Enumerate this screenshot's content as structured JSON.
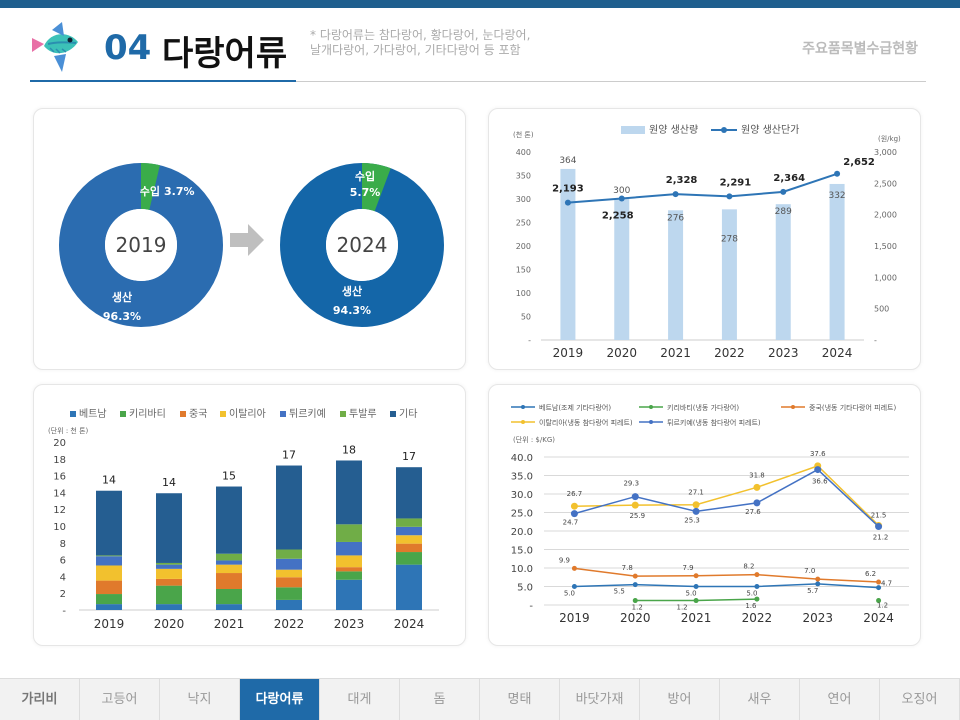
{
  "header": {
    "number": "04",
    "title": "다랑어류",
    "note": "* 다랑어류는 참다랑어, 황다랑어, 눈다랑어,\n 날개다랑어, 가다랑어, 기타다랑어 등 포함",
    "subtitle": "주요품목별수급현황"
  },
  "nav": {
    "active_index": 3,
    "tabs": [
      "가리비",
      "고등어",
      "낙지",
      "다랑어류",
      "대게",
      "돔",
      "명태",
      "바닷가재",
      "방어",
      "새우",
      "연어",
      "오징어"
    ]
  },
  "colors": {
    "donut_blue": "#2b6cb0",
    "donut_blue_2024": "#1466a8",
    "donut_green": "#3aac4a",
    "bar_light": "#bdd7ee",
    "line_blue": "#2e75b6"
  },
  "chart_data": [
    {
      "type": "pie",
      "id": "donut-2019",
      "center_label": "2019",
      "slices": [
        {
          "name": "수입",
          "value": 3.7,
          "label": "3.7%"
        },
        {
          "name": "생산",
          "value": 96.3,
          "label": "96.3%"
        }
      ]
    },
    {
      "type": "pie",
      "id": "donut-2024",
      "center_label": "2024",
      "slices": [
        {
          "name": "수입",
          "value": 5.7,
          "label": "5.7%"
        },
        {
          "name": "생산",
          "value": 94.3,
          "label": "94.3%"
        }
      ]
    },
    {
      "type": "bar",
      "id": "production",
      "categories": [
        "2019",
        "2020",
        "2021",
        "2022",
        "2023",
        "2024"
      ],
      "series": [
        {
          "name": "원양 생산량",
          "kind": "bar",
          "axis": "left",
          "values": [
            364,
            300,
            276,
            278,
            289,
            332
          ]
        },
        {
          "name": "원양 생산단가",
          "kind": "line",
          "axis": "right",
          "values": [
            2193,
            2258,
            2328,
            2291,
            2364,
            2652
          ]
        }
      ],
      "value_labels": {
        "bar": [
          "364",
          "300",
          "276",
          "278",
          "289",
          "332"
        ],
        "line": [
          "2,193",
          "2,258",
          "2,328",
          "2,291",
          "2,364",
          "2,652"
        ]
      },
      "left_unit": "(천 톤)",
      "right_unit": "(원/kg)",
      "left_ticks": [
        "-",
        "50",
        "100",
        "150",
        "200",
        "250",
        "300",
        "350",
        "400"
      ],
      "right_ticks": [
        "-",
        "500",
        "1,000",
        "1,500",
        "2,000",
        "2,500",
        "3,000"
      ],
      "ylim_left": [
        0,
        400
      ],
      "ylim_right": [
        0,
        3000
      ]
    },
    {
      "type": "bar",
      "stacked": true,
      "id": "imports-by-country",
      "categories": [
        "2019",
        "2020",
        "2021",
        "2022",
        "2023",
        "2024"
      ],
      "series": [
        {
          "name": "베트남",
          "color": "#2e75b6",
          "values": [
            0.7,
            0.7,
            0.7,
            1.2,
            3.6,
            5.4
          ]
        },
        {
          "name": "키리바티",
          "color": "#4aa54a",
          "values": [
            1.2,
            2.2,
            1.8,
            1.5,
            1.0,
            1.5
          ]
        },
        {
          "name": "중국",
          "color": "#e07a2c",
          "values": [
            1.6,
            0.8,
            1.9,
            1.2,
            0.5,
            1.0
          ]
        },
        {
          "name": "이탈리아",
          "color": "#f2c12e",
          "values": [
            1.8,
            1.2,
            1.0,
            0.9,
            1.4,
            1.0
          ]
        },
        {
          "name": "튀르키예",
          "color": "#4472c4",
          "values": [
            1.1,
            0.5,
            0.5,
            1.3,
            1.6,
            1.0
          ]
        },
        {
          "name": "투발루",
          "color": "#70ad47",
          "values": [
            0.1,
            0.2,
            0.8,
            1.1,
            2.1,
            1.0
          ]
        },
        {
          "name": "기타",
          "color": "#255e91",
          "values": [
            7.7,
            8.3,
            8.0,
            10.0,
            7.6,
            6.1
          ]
        }
      ],
      "totals": [
        "14",
        "14",
        "15",
        "17",
        "18",
        "17"
      ],
      "unit": "(단위 : 천 톤)",
      "y_ticks": [
        "-",
        "2",
        "4",
        "6",
        "8",
        "10",
        "12",
        "14",
        "16",
        "18",
        "20"
      ],
      "ylim": [
        0,
        20
      ]
    },
    {
      "type": "line",
      "id": "import-prices",
      "categories": [
        "2019",
        "2020",
        "2021",
        "2022",
        "2023",
        "2024"
      ],
      "series": [
        {
          "name": "베트남(조제 기타다랑어)",
          "color": "#2e75b6",
          "values": [
            5.0,
            5.5,
            5.0,
            5.0,
            5.7,
            4.7
          ],
          "labels": [
            "5.0",
            "5.5",
            "5.0",
            "5.0",
            "5.7",
            "4.7"
          ]
        },
        {
          "name": "키리바티(냉동 가다랑어)",
          "color": "#4aa54a",
          "values": [
            null,
            1.2,
            1.2,
            1.6,
            null,
            1.2
          ],
          "labels": [
            "",
            "1.2",
            "1.2",
            "1.6",
            "",
            "1.2"
          ]
        },
        {
          "name": "중국(냉동 기타다랑어 피레트)",
          "color": "#e07a2c",
          "values": [
            9.9,
            7.8,
            7.9,
            8.2,
            7.0,
            6.2
          ],
          "labels": [
            "9.9",
            "7.8",
            "7.9",
            "8.2",
            "7.0",
            "6.2"
          ]
        },
        {
          "name": "이탈리아(냉동 참다랑어 피레트)",
          "color": "#f2c12e",
          "values": [
            26.7,
            27.0,
            27.1,
            31.8,
            37.6,
            21.5
          ],
          "labels": [
            "26.7",
            "",
            "27.1",
            "31.8",
            "37.6",
            "21.5"
          ]
        },
        {
          "name": "튀르키예(냉동 참다랑어 피레트)",
          "color": "#4472c4",
          "values": [
            24.7,
            29.3,
            25.3,
            27.6,
            36.6,
            21.2
          ],
          "labels": [
            "24.7",
            "29.3",
            "25.3",
            "27.6",
            "36.6",
            "21.2"
          ]
        }
      ],
      "extra_labels": [
        "25.9"
      ],
      "unit": "(단위 : $/KG)",
      "y_ticks": [
        "-",
        "5.0",
        "10.0",
        "15.0",
        "20.0",
        "25.0",
        "30.0",
        "35.0",
        "40.0"
      ],
      "ylim": [
        0,
        40
      ]
    }
  ]
}
